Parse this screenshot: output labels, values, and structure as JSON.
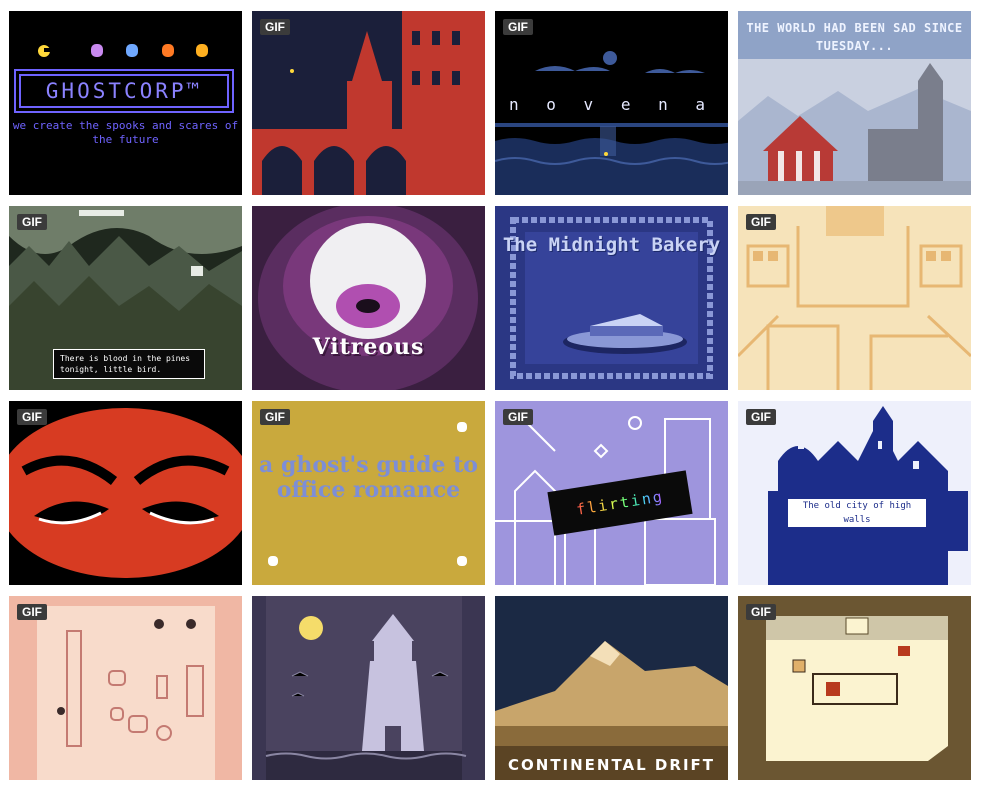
{
  "gif_badge": "GIF",
  "tiles": [
    {
      "name": "GhostCorp",
      "gif": false,
      "title": "GHOSTCORP™",
      "subtitle": "we create the spooks and scares of the future",
      "colors": {
        "bg": "#000000",
        "accent": "#6f63ff"
      }
    },
    {
      "name": "Red Castle",
      "gif": true,
      "colors": {
        "bg": "#1b1f3a",
        "accent": "#c0382e"
      }
    },
    {
      "name": "Novena",
      "gif": true,
      "title": "n o v e n a",
      "colors": {
        "bg": "#000000",
        "accent": "#3e5a9a"
      }
    },
    {
      "name": "Sad Tuesday",
      "gif": false,
      "title": "THE WORLD HAD BEEN SAD SINCE TUESDAY...",
      "colors": {
        "bg": "#b9c2d6",
        "accent": "#8fa3c7"
      }
    },
    {
      "name": "Blood in the Pines",
      "gif": true,
      "title": "There is blood in the pines tonight, little bird.",
      "colors": {
        "bg": "#2f3a2d",
        "accent": "#8a9a84"
      }
    },
    {
      "name": "Vitreous",
      "gif": false,
      "title": "Vitreous",
      "colors": {
        "bg": "#4c2a52",
        "accent": "#b04fb0"
      }
    },
    {
      "name": "The Midnight Bakery",
      "gif": false,
      "title": "The Midnight Bakery",
      "colors": {
        "bg": "#2b3784",
        "accent": "#8a98d6"
      }
    },
    {
      "name": "Peach Maze",
      "gif": true,
      "colors": {
        "bg": "#f6e3ba",
        "accent": "#e7b773"
      }
    },
    {
      "name": "Angry Eyes",
      "gif": true,
      "colors": {
        "bg": "#d73b22",
        "accent": "#000000"
      }
    },
    {
      "name": "A Ghost's Guide to Office Romance",
      "gif": true,
      "title": "a ghost's guide to office romance",
      "colors": {
        "bg": "#c9a93d",
        "accent": "#7d8ed6"
      }
    },
    {
      "name": "Flirting",
      "gif": true,
      "title": "flirting",
      "colors": {
        "bg": "#9e95dd",
        "accent": "#ffffff"
      }
    },
    {
      "name": "The Old City of High Walls",
      "gif": true,
      "title": "The old city of high walls",
      "colors": {
        "bg": "#eef0fb",
        "accent": "#1c2d8a"
      }
    },
    {
      "name": "Pink Room",
      "gif": true,
      "colors": {
        "bg": "#f8dbcb",
        "accent": "#d88a84"
      }
    },
    {
      "name": "Lighthouse",
      "gif": false,
      "colors": {
        "bg": "#4a435f",
        "accent": "#c7c2df"
      }
    },
    {
      "name": "Continental Drift",
      "gif": false,
      "title": "CONTINENTAL DRIFT",
      "colors": {
        "bg": "#1b2944",
        "accent": "#c8a56b"
      }
    },
    {
      "name": "Cream Room",
      "gif": true,
      "colors": {
        "bg": "#6b5632",
        "accent": "#fbf3d0"
      }
    }
  ]
}
